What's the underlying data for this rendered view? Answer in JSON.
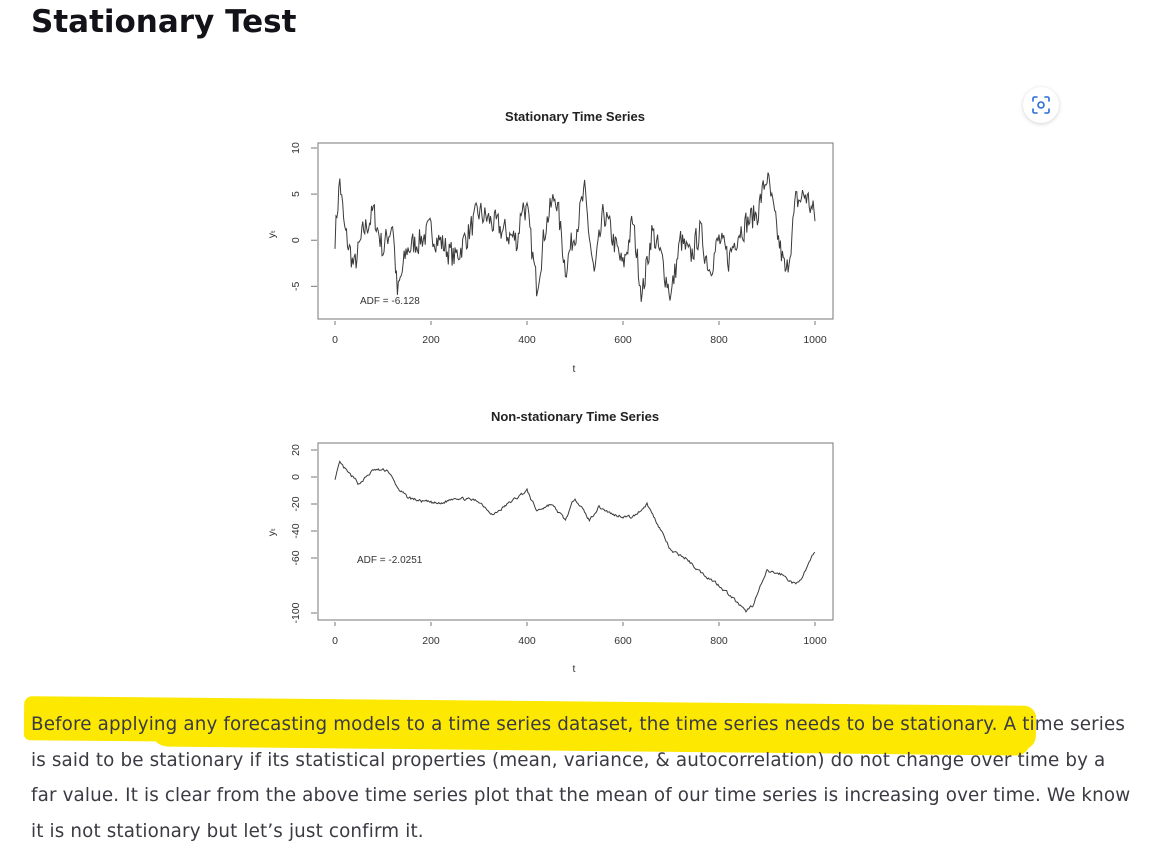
{
  "heading": "Stationary Test",
  "zoom_icon": "scan-focus-icon",
  "highlight_color": "#fce800",
  "chart_data": [
    {
      "type": "line",
      "title": "Stationary Time Series",
      "xlabel": "t",
      "ylabel": "yₜ",
      "xlim": [
        0,
        1000
      ],
      "ylim": [
        -8,
        10
      ],
      "xticks": [
        "0",
        "200",
        "400",
        "600",
        "800",
        "1000"
      ],
      "yticks": [
        "-5",
        "0",
        "5",
        "10"
      ],
      "annotation": "ADF = -6.128",
      "key_points": {
        "x": [
          0,
          10,
          20,
          40,
          60,
          80,
          100,
          120,
          130,
          150,
          200,
          250,
          300,
          350,
          380,
          390,
          400,
          420,
          440,
          460,
          480,
          500,
          520,
          540,
          560,
          580,
          600,
          620,
          640,
          660,
          680,
          700,
          720,
          740,
          760,
          780,
          800,
          820,
          840,
          860,
          880,
          900,
          910,
          920,
          940,
          960,
          980,
          1000
        ],
        "y": [
          0.5,
          6.5,
          1,
          -3,
          1,
          3,
          -1,
          2,
          -6,
          -1,
          1,
          -2,
          3,
          1,
          0,
          4,
          3,
          -5,
          2,
          5,
          -3,
          1,
          5,
          -4,
          3,
          0,
          -3,
          2,
          -6,
          1,
          -2,
          -6,
          0,
          -2,
          1,
          -3,
          0,
          -2,
          1,
          2,
          3,
          7,
          4,
          1,
          -4,
          4,
          5,
          2.5
        ]
      }
    },
    {
      "type": "line",
      "title": "Non-stationary Time Series",
      "xlabel": "t",
      "ylabel": "yₜ",
      "xlim": [
        0,
        1000
      ],
      "ylim": [
        -105,
        25
      ],
      "xticks": [
        "0",
        "200",
        "400",
        "600",
        "800",
        "1000"
      ],
      "yticks": [
        "-100",
        "-60",
        "-40",
        "-20",
        "0",
        "20"
      ],
      "annotation": "ADF = -2.0251",
      "key_points": {
        "x": [
          0,
          10,
          30,
          50,
          80,
          110,
          130,
          150,
          180,
          220,
          250,
          300,
          330,
          360,
          400,
          420,
          450,
          480,
          500,
          530,
          550,
          580,
          620,
          650,
          680,
          700,
          730,
          760,
          800,
          830,
          855,
          870,
          900,
          930,
          960,
          980,
          1000
        ],
        "y": [
          -1,
          10,
          2,
          -5,
          5,
          5,
          -8,
          -15,
          -18,
          -20,
          -15,
          -18,
          -28,
          -20,
          -10,
          -25,
          -20,
          -32,
          -15,
          -32,
          -22,
          -28,
          -30,
          -20,
          -40,
          -55,
          -60,
          -70,
          -80,
          -90,
          -100,
          -95,
          -70,
          -72,
          -80,
          -70,
          -55
        ]
      }
    }
  ],
  "paragraph": {
    "highlighted": "Before applying any forecasting models to a time series dataset, the time series needs to be stationary.",
    "rest": " A time series is said to be stationary if its statistical properties (mean, variance, & autocorrelation) do not change over time by a far value. It is clear from the above time series plot that the mean of our time series is increasing over time. We know it is not stationary but let’s just confirm it."
  }
}
